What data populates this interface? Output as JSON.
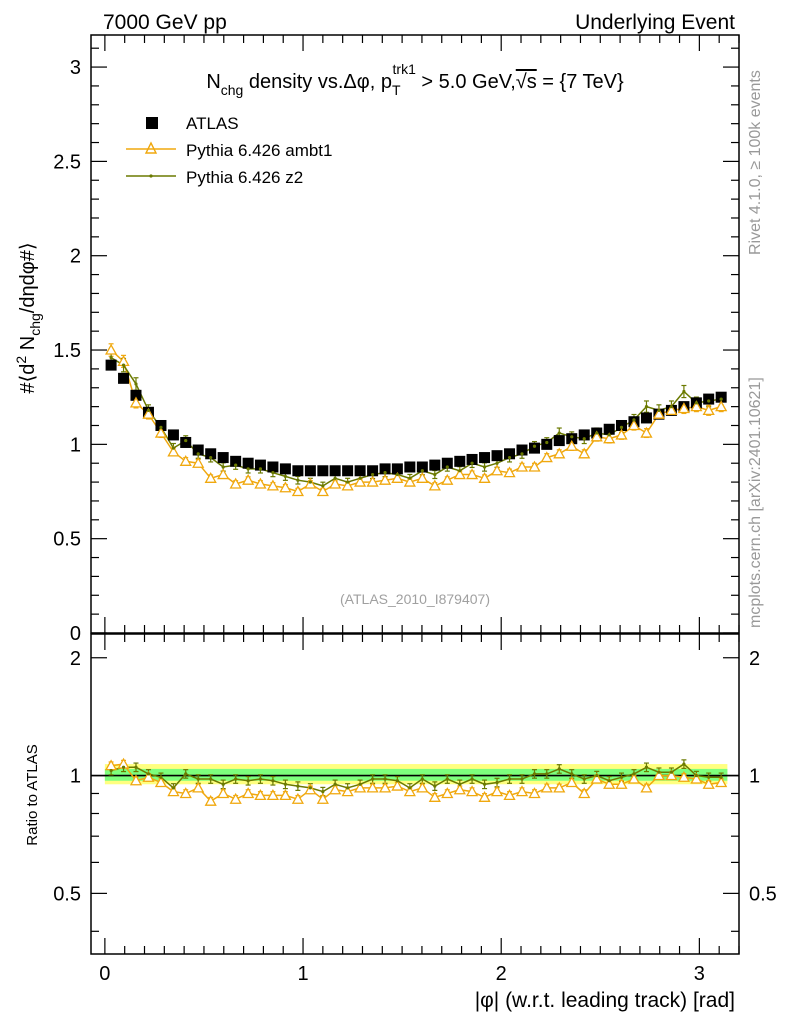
{
  "header": {
    "left": "7000 GeV pp",
    "right": "Underlying Event"
  },
  "side": {
    "rivet": "Rivet 4.1.0, ≥ 100k events",
    "mcplots": "mcplots.cern.ch [arXiv:2401.10621]"
  },
  "watermark": "(ATLAS_2010_I879407)",
  "colors": {
    "atlas": "#000000",
    "ambt1": "#f0a80e",
    "z2": "#6b7a00",
    "band_green": "#7dff7d",
    "band_yellow": "#ffff80"
  },
  "chart_data": {
    "type": "scatter",
    "title": {
      "N": "N",
      "chg": "chg",
      "mid": " density vs.Δφ, p",
      "T": "T",
      "trk1": "trk1",
      "gt": " > 5.0 GeV,",
      "rs": "√s",
      "val": " = {7 TeV}"
    },
    "ylabel_main": {
      "a": "#⟨d",
      "sq": "2",
      "b": " N",
      "chg": "chg",
      "c": "/dηdφ#⟩"
    },
    "ylabel_ratio": "Ratio to ATLAS",
    "xlabel": "|φ| (w.r.t. leading track) [rad]",
    "xlim": [
      -0.07,
      3.2
    ],
    "ylim": [
      0,
      3.17
    ],
    "ratio_ylim": [
      0.35,
      2.3
    ],
    "xticks": [
      0,
      1,
      2,
      3
    ],
    "xtick_labels": [
      "0",
      "1",
      "2",
      "3"
    ],
    "yticks": [
      0,
      0.5,
      1,
      1.5,
      2,
      2.5,
      3
    ],
    "ytick_labels": [
      "0",
      "0.5",
      "1",
      "1.5",
      "2",
      "2.5",
      "3"
    ],
    "ratio_yticks": [
      0.5,
      1,
      2
    ],
    "ratio_ytick_labels": [
      "0.5",
      "1",
      "2"
    ],
    "x": [
      0.0314,
      0.0942,
      0.157,
      0.22,
      0.283,
      0.346,
      0.408,
      0.471,
      0.534,
      0.597,
      0.66,
      0.723,
      0.785,
      0.848,
      0.911,
      0.974,
      1.037,
      1.1,
      1.162,
      1.225,
      1.288,
      1.351,
      1.414,
      1.476,
      1.539,
      1.602,
      1.665,
      1.728,
      1.791,
      1.853,
      1.916,
      1.979,
      2.042,
      2.105,
      2.168,
      2.23,
      2.293,
      2.356,
      2.419,
      2.482,
      2.545,
      2.607,
      2.67,
      2.733,
      2.796,
      2.859,
      2.922,
      2.985,
      3.047,
      3.11
    ],
    "series": [
      {
        "name": "ATLAS",
        "marker": "square",
        "values": [
          1.42,
          1.35,
          1.26,
          1.17,
          1.1,
          1.05,
          1.01,
          0.97,
          0.95,
          0.93,
          0.91,
          0.9,
          0.89,
          0.88,
          0.87,
          0.86,
          0.86,
          0.86,
          0.86,
          0.86,
          0.86,
          0.86,
          0.87,
          0.87,
          0.88,
          0.88,
          0.89,
          0.9,
          0.91,
          0.92,
          0.93,
          0.94,
          0.95,
          0.97,
          0.98,
          1.0,
          1.02,
          1.03,
          1.05,
          1.06,
          1.08,
          1.1,
          1.12,
          1.14,
          1.16,
          1.18,
          1.2,
          1.22,
          1.24,
          1.25
        ]
      },
      {
        "name": "Pythia 6.426 ambt1",
        "marker": "triangle",
        "values": [
          1.5,
          1.44,
          1.22,
          1.16,
          1.06,
          0.96,
          0.91,
          0.9,
          0.82,
          0.84,
          0.79,
          0.81,
          0.79,
          0.78,
          0.77,
          0.75,
          0.79,
          0.75,
          0.79,
          0.78,
          0.8,
          0.8,
          0.81,
          0.82,
          0.8,
          0.82,
          0.78,
          0.81,
          0.84,
          0.84,
          0.82,
          0.86,
          0.85,
          0.88,
          0.88,
          0.93,
          0.95,
          0.99,
          0.95,
          1.04,
          1.03,
          1.05,
          1.1,
          1.06,
          1.16,
          1.18,
          1.19,
          1.2,
          1.18,
          1.2
        ]
      },
      {
        "name": "Pythia 6.426 z2",
        "marker": "dot",
        "values": [
          1.46,
          1.42,
          1.32,
          1.18,
          1.09,
          0.98,
          1.02,
          0.95,
          0.93,
          0.88,
          0.89,
          0.87,
          0.87,
          0.85,
          0.83,
          0.81,
          0.8,
          0.78,
          0.82,
          0.8,
          0.82,
          0.84,
          0.85,
          0.84,
          0.82,
          0.86,
          0.84,
          0.88,
          0.86,
          0.9,
          0.88,
          0.9,
          0.93,
          0.95,
          0.99,
          1.01,
          1.06,
          1.04,
          1.03,
          1.06,
          1.05,
          1.09,
          1.13,
          1.2,
          1.18,
          1.2,
          1.28,
          1.22,
          1.23,
          1.24
        ]
      }
    ],
    "ratio_series": [
      {
        "name": "Pythia 6.426 ambt1",
        "values": [
          1.06,
          1.07,
          0.97,
          0.99,
          0.96,
          0.91,
          0.9,
          0.93,
          0.86,
          0.9,
          0.87,
          0.9,
          0.89,
          0.89,
          0.89,
          0.87,
          0.92,
          0.87,
          0.92,
          0.91,
          0.93,
          0.93,
          0.93,
          0.94,
          0.91,
          0.93,
          0.88,
          0.9,
          0.92,
          0.91,
          0.88,
          0.91,
          0.89,
          0.91,
          0.9,
          0.93,
          0.93,
          0.96,
          0.9,
          0.98,
          0.95,
          0.95,
          0.98,
          0.93,
          1.0,
          1.0,
          0.99,
          0.98,
          0.95,
          0.96
        ]
      },
      {
        "name": "Pythia 6.426 z2",
        "values": [
          1.03,
          1.05,
          1.05,
          1.01,
          0.99,
          0.93,
          1.01,
          0.98,
          0.98,
          0.95,
          0.98,
          0.97,
          0.98,
          0.97,
          0.95,
          0.94,
          0.93,
          0.91,
          0.95,
          0.93,
          0.95,
          0.98,
          0.98,
          0.97,
          0.93,
          0.98,
          0.94,
          0.98,
          0.95,
          0.98,
          0.95,
          0.96,
          0.98,
          0.98,
          1.01,
          1.01,
          1.04,
          1.01,
          0.98,
          1.0,
          0.97,
          0.99,
          1.01,
          1.05,
          1.02,
          1.02,
          1.07,
          1.0,
          0.99,
          0.99
        ]
      }
    ]
  }
}
